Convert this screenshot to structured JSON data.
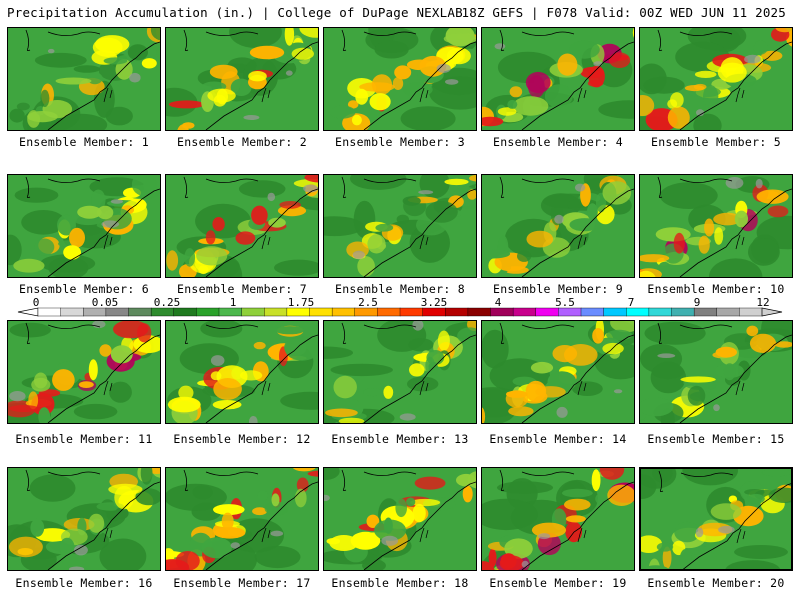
{
  "header": {
    "left": "Precipitation Accumulation (in.) | College of DuPage NEXLAB",
    "right": "18Z GEFS | F078 Valid: 00Z WED JUN 11 2025"
  },
  "members": [
    {
      "label": "Ensemble Member: 1",
      "theme": "green"
    },
    {
      "label": "Ensemble Member: 2",
      "theme": "yellow"
    },
    {
      "label": "Ensemble Member: 3",
      "theme": "yellow"
    },
    {
      "label": "Ensemble Member: 4",
      "theme": "yellow-red"
    },
    {
      "label": "Ensemble Member: 5",
      "theme": "yellow"
    },
    {
      "label": "Ensemble Member: 6",
      "theme": "green"
    },
    {
      "label": "Ensemble Member: 7",
      "theme": "yellow"
    },
    {
      "label": "Ensemble Member: 8",
      "theme": "green"
    },
    {
      "label": "Ensemble Member: 9",
      "theme": "green"
    },
    {
      "label": "Ensemble Member: 10",
      "theme": "yellow-red"
    },
    {
      "label": "Ensemble Member: 11",
      "theme": "yellow-red"
    },
    {
      "label": "Ensemble Member: 12",
      "theme": "yellow"
    },
    {
      "label": "Ensemble Member: 13",
      "theme": "green"
    },
    {
      "label": "Ensemble Member: 14",
      "theme": "yellow"
    },
    {
      "label": "Ensemble Member: 15",
      "theme": "green"
    },
    {
      "label": "Ensemble Member: 16",
      "theme": "green"
    },
    {
      "label": "Ensemble Member: 17",
      "theme": "yellow"
    },
    {
      "label": "Ensemble Member: 18",
      "theme": "yellow"
    },
    {
      "label": "Ensemble Member: 19",
      "theme": "yellow-red"
    },
    {
      "label": "Ensemble Member: 20",
      "theme": "green"
    }
  ],
  "selected_member": 20,
  "colorbar": {
    "labels": [
      "0",
      "0.05",
      "0.25",
      "1",
      "1.75",
      "2.5",
      "3.25",
      "4",
      "5.5",
      "7",
      "9",
      "12"
    ],
    "colors": [
      "#ffffff",
      "#d8d8d8",
      "#b0b0b0",
      "#888888",
      "#5e8a5e",
      "#2e8b2e",
      "#1f7a1f",
      "#2aa22a",
      "#4cb84c",
      "#8fd03a",
      "#c8e028",
      "#ffff00",
      "#ffe000",
      "#ffc000",
      "#ff9900",
      "#ff6a00",
      "#ff3a00",
      "#e00000",
      "#b40000",
      "#8a0000",
      "#a0005a",
      "#c8008c",
      "#f000f0",
      "#b060ff",
      "#6a8cff",
      "#00c8ff",
      "#00ffff",
      "#30d8d8",
      "#40b0b0",
      "#808080",
      "#a8a8a8",
      "#d0d0d0"
    ]
  },
  "field_colors": {
    "darkgreen": "#2e8b2e",
    "green": "#3fa53f",
    "lightgreen": "#8fd03a",
    "yellow": "#ffff00",
    "orange": "#ffb400",
    "red": "#e41a1a",
    "magenta": "#b4005a",
    "gray": "#9a9a9a"
  }
}
